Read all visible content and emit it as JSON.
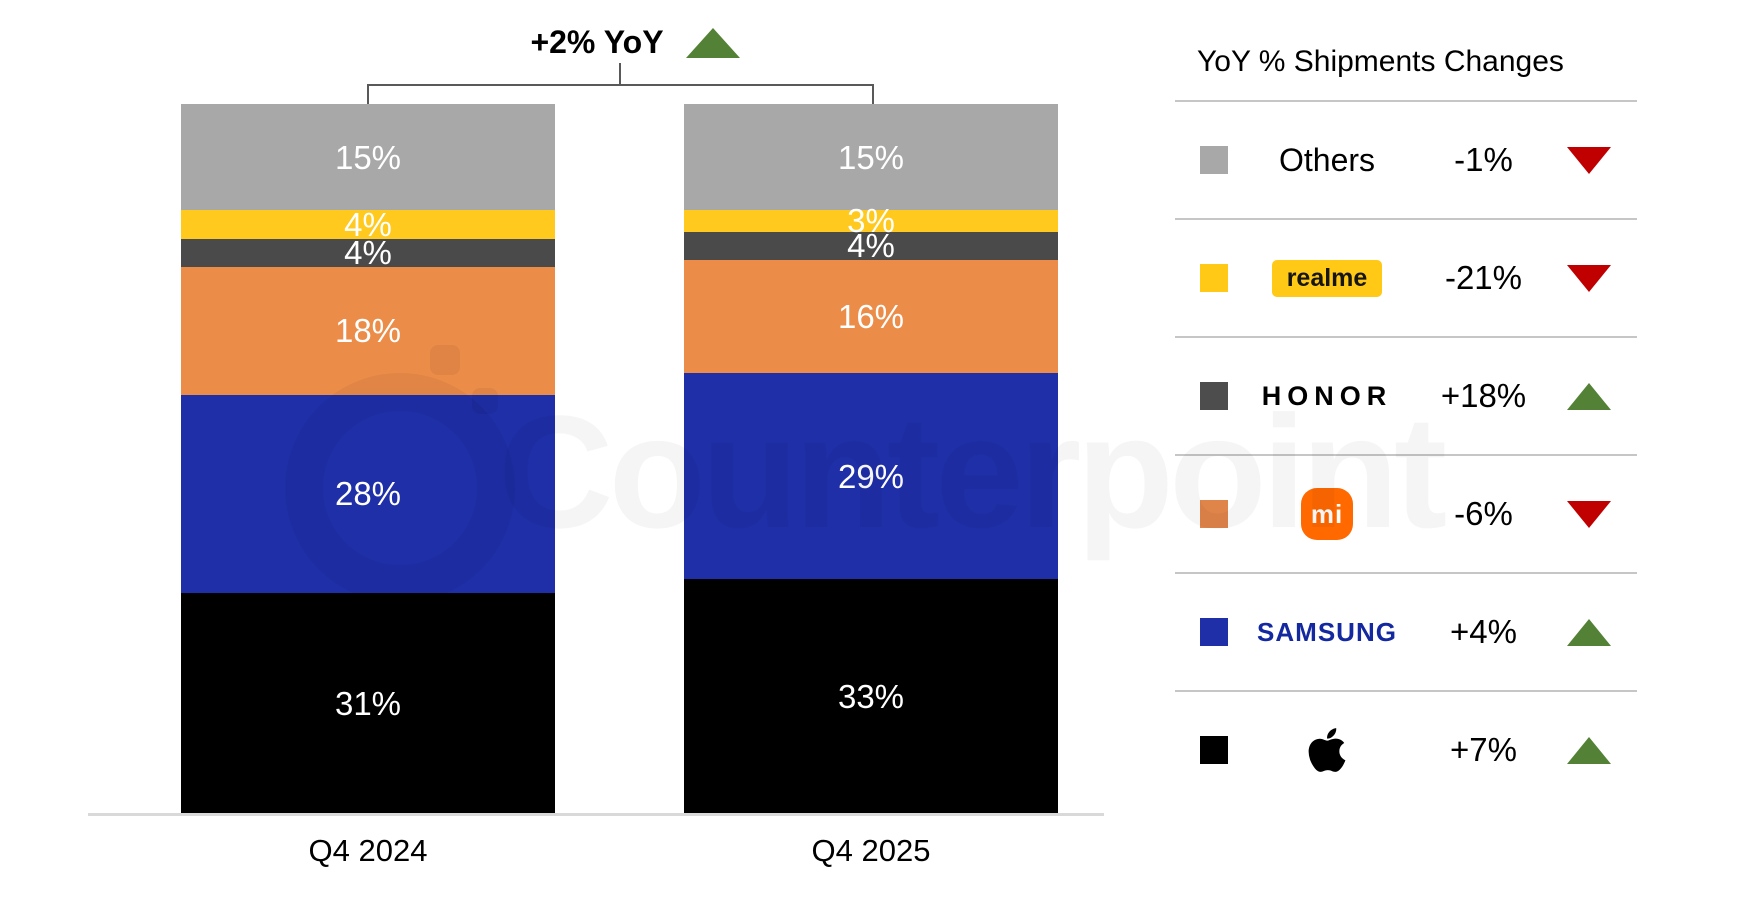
{
  "chart_data": {
    "type": "bar",
    "stacked": true,
    "categories": [
      "Q4 2024",
      "Q4 2025"
    ],
    "series_order": "bottom-to-top",
    "series": [
      {
        "name": "Apple",
        "color": "#000000",
        "values": [
          31,
          33
        ]
      },
      {
        "name": "Samsung",
        "color": "#1F2FA8",
        "values": [
          28,
          29
        ]
      },
      {
        "name": "Xiaomi",
        "color": "#EB8C49",
        "values": [
          18,
          16
        ]
      },
      {
        "name": "HONOR",
        "color": "#4A4A4A",
        "values": [
          4,
          4
        ]
      },
      {
        "name": "realme",
        "color": "#FFC91E",
        "values": [
          4,
          3
        ]
      },
      {
        "name": "Others",
        "color": "#A8A8A8",
        "values": [
          15,
          15
        ]
      }
    ],
    "value_suffix": "%",
    "total_change_label": "+2% YoY",
    "total_change_direction": "up",
    "ylim": [
      0,
      100
    ],
    "grid": false,
    "legend_position": "right"
  },
  "legend": {
    "title": "YoY % Shipments Changes",
    "rows": [
      {
        "brand": "Others",
        "display": "text",
        "change": "-1%",
        "direction": "down",
        "color": "#A8A8A8"
      },
      {
        "brand": "realme",
        "display": "badge",
        "change": "-21%",
        "direction": "down",
        "color": "#FFC915"
      },
      {
        "brand": "HONOR",
        "display": "wordmark",
        "change": "+18%",
        "direction": "up",
        "color": "#4D4D4D"
      },
      {
        "brand": "Xiaomi",
        "display": "logo",
        "logo_text": "mi",
        "change": "-6%",
        "direction": "down",
        "color": "#E0854A"
      },
      {
        "brand": "SAMSUNG",
        "display": "wordmark",
        "change": "+4%",
        "direction": "up",
        "color": "#1F2FA8"
      },
      {
        "brand": "Apple",
        "display": "logo",
        "change": "+7%",
        "direction": "up",
        "color": "#000000"
      }
    ],
    "up_color": "#538135",
    "down_color": "#C00000"
  },
  "watermark": {
    "text": "Counterpoint"
  }
}
